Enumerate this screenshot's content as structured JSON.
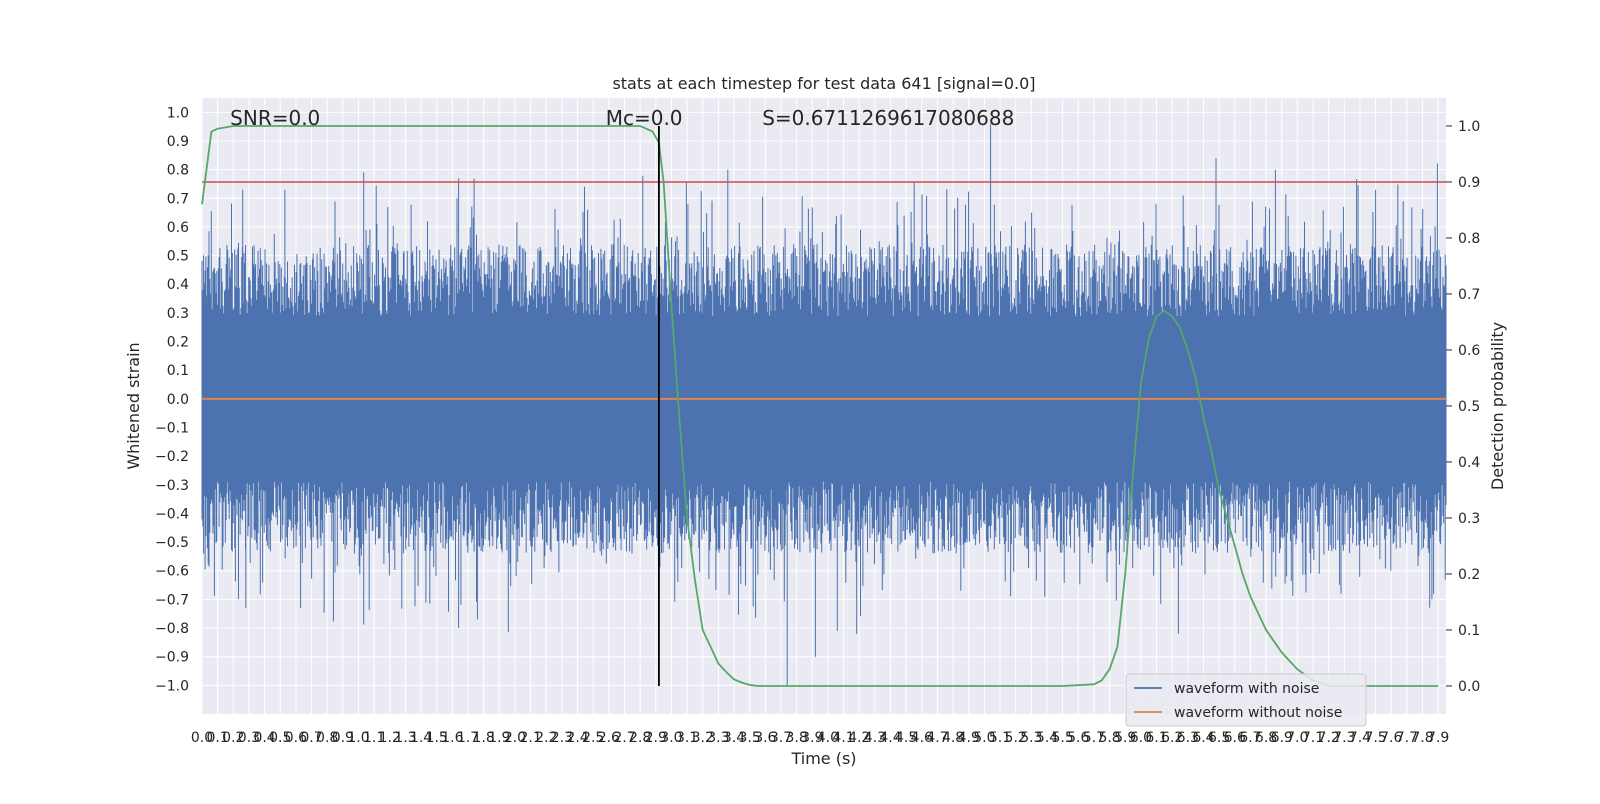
{
  "chart_data": {
    "type": "line",
    "title": "stats at each timestep for test data 641 [signal=0.0]",
    "xlabel": "Time (s)",
    "ylabel_left": "Whitened strain",
    "ylabel_right": "Detection probability",
    "xlim": [
      0.0,
      7.95
    ],
    "ylim_left": [
      -1.1,
      1.05
    ],
    "ylim_right": [
      -0.05,
      1.05
    ],
    "grid": true,
    "x_tick_labels": [
      "0.0",
      "0.1",
      "0.2",
      "0.3",
      "0.4",
      "0.5",
      "0.6",
      "0.7",
      "0.8",
      "0.9",
      "1.0",
      "1.1",
      "1.2",
      "1.3",
      "1.4",
      "1.5",
      "1.6",
      "1.7",
      "1.8",
      "1.9",
      "2.0",
      "2.1",
      "2.2",
      "2.3",
      "2.4",
      "2.5",
      "2.6",
      "2.7",
      "2.8",
      "2.9",
      "3.0",
      "3.1",
      "3.2",
      "3.3",
      "3.4",
      "3.5",
      "3.6",
      "3.7",
      "3.8",
      "3.9",
      "4.0",
      "4.1",
      "4.2",
      "4.3",
      "4.4",
      "4.5",
      "4.6",
      "4.7",
      "4.8",
      "4.9",
      "5.0",
      "5.1",
      "5.2",
      "5.3",
      "5.4",
      "5.5",
      "5.6",
      "5.7",
      "5.8",
      "5.9",
      "6.0",
      "6.1",
      "6.2",
      "6.3",
      "6.4",
      "6.5",
      "6.6",
      "6.7",
      "6.8",
      "6.9",
      "7.0",
      "7.1",
      "7.2",
      "7.3",
      "7.4",
      "7.5",
      "7.6",
      "7.7",
      "7.8",
      "7.9"
    ],
    "y_left_tick_labels": [
      "−1.0",
      "−0.9",
      "−0.8",
      "−0.7",
      "−0.6",
      "−0.5",
      "−0.4",
      "−0.3",
      "−0.2",
      "−0.1",
      "0.0",
      "0.1",
      "0.2",
      "0.3",
      "0.4",
      "0.5",
      "0.6",
      "0.7",
      "0.8",
      "0.9",
      "1.0"
    ],
    "y_right_tick_labels": [
      "0.0",
      "0.1",
      "0.2",
      "0.3",
      "0.4",
      "0.5",
      "0.6",
      "0.7",
      "0.8",
      "0.9",
      "1.0"
    ],
    "annotations": [
      {
        "text": "SNR=0.0",
        "x": 0.18,
        "y": 0.98
      },
      {
        "text": "Mc=0.0",
        "x": 2.58,
        "y": 0.98
      },
      {
        "text": "S=0.6711269617080688",
        "x": 3.58,
        "y": 0.98
      }
    ],
    "vertical_marker_x": 2.92,
    "threshold": {
      "value": 0.9,
      "axis": "right",
      "color": "#c44e52"
    },
    "noise_envelope": {
      "baseline_amplitude": 0.36,
      "peaks": [
        {
          "x": 0.26,
          "y": 0.73
        },
        {
          "x": 0.53,
          "y": 0.73
        },
        {
          "x": 1.64,
          "y": 0.77
        },
        {
          "x": 3.36,
          "y": 0.8
        },
        {
          "x": 5.04,
          "y": 0.96
        },
        {
          "x": 6.48,
          "y": 0.84
        },
        {
          "x": 6.86,
          "y": 0.8
        },
        {
          "x": 7.5,
          "y": 0.73
        },
        {
          "x": 0.28,
          "y": -0.73
        },
        {
          "x": 0.63,
          "y": -0.73
        },
        {
          "x": 1.64,
          "y": -0.8
        },
        {
          "x": 1.76,
          "y": -0.77
        },
        {
          "x": 3.74,
          "y": -1.0
        },
        {
          "x": 3.92,
          "y": -0.9
        },
        {
          "x": 4.06,
          "y": -0.81
        },
        {
          "x": 6.24,
          "y": -0.82
        },
        {
          "x": 7.86,
          "y": -0.7
        }
      ]
    },
    "series": [
      {
        "name": "waveform with noise",
        "color": "#4c72b0",
        "kind": "noise"
      },
      {
        "name": "waveform without noise",
        "color": "#dd8452",
        "x": [
          0.0,
          7.95
        ],
        "y": [
          0.0,
          0.0
        ]
      },
      {
        "name": "",
        "color": "#55a868",
        "axis": "right",
        "x": [
          0.0,
          0.06,
          0.1,
          0.2,
          0.4,
          1.0,
          2.0,
          2.8,
          2.88,
          2.92,
          2.95,
          3.0,
          3.05,
          3.1,
          3.15,
          3.2,
          3.25,
          3.3,
          3.35,
          3.4,
          3.45,
          3.5,
          3.55,
          3.6,
          3.7,
          4.0,
          5.0,
          5.5,
          5.7,
          5.75,
          5.8,
          5.85,
          5.9,
          5.95,
          6.0,
          6.05,
          6.1,
          6.15,
          6.2,
          6.25,
          6.3,
          6.35,
          6.4,
          6.45,
          6.5,
          6.55,
          6.6,
          6.65,
          6.7,
          6.75,
          6.8,
          6.85,
          6.9,
          7.0,
          7.1,
          7.2,
          7.3,
          7.4,
          7.5,
          7.6,
          7.7,
          7.9
        ],
        "y": [
          0.86,
          0.99,
          0.995,
          1.0,
          1.0,
          1.0,
          1.0,
          1.0,
          0.99,
          0.97,
          0.9,
          0.68,
          0.48,
          0.3,
          0.19,
          0.1,
          0.07,
          0.04,
          0.025,
          0.012,
          0.006,
          0.002,
          0.0,
          0.0,
          0.0,
          0.0,
          0.0,
          0.0,
          0.003,
          0.01,
          0.03,
          0.07,
          0.2,
          0.38,
          0.54,
          0.62,
          0.66,
          0.67,
          0.66,
          0.64,
          0.6,
          0.55,
          0.48,
          0.42,
          0.35,
          0.3,
          0.25,
          0.2,
          0.16,
          0.13,
          0.1,
          0.08,
          0.06,
          0.03,
          0.01,
          0.0,
          0.0,
          0.0,
          0.0,
          0.0,
          0.0,
          0.0
        ]
      }
    ]
  }
}
